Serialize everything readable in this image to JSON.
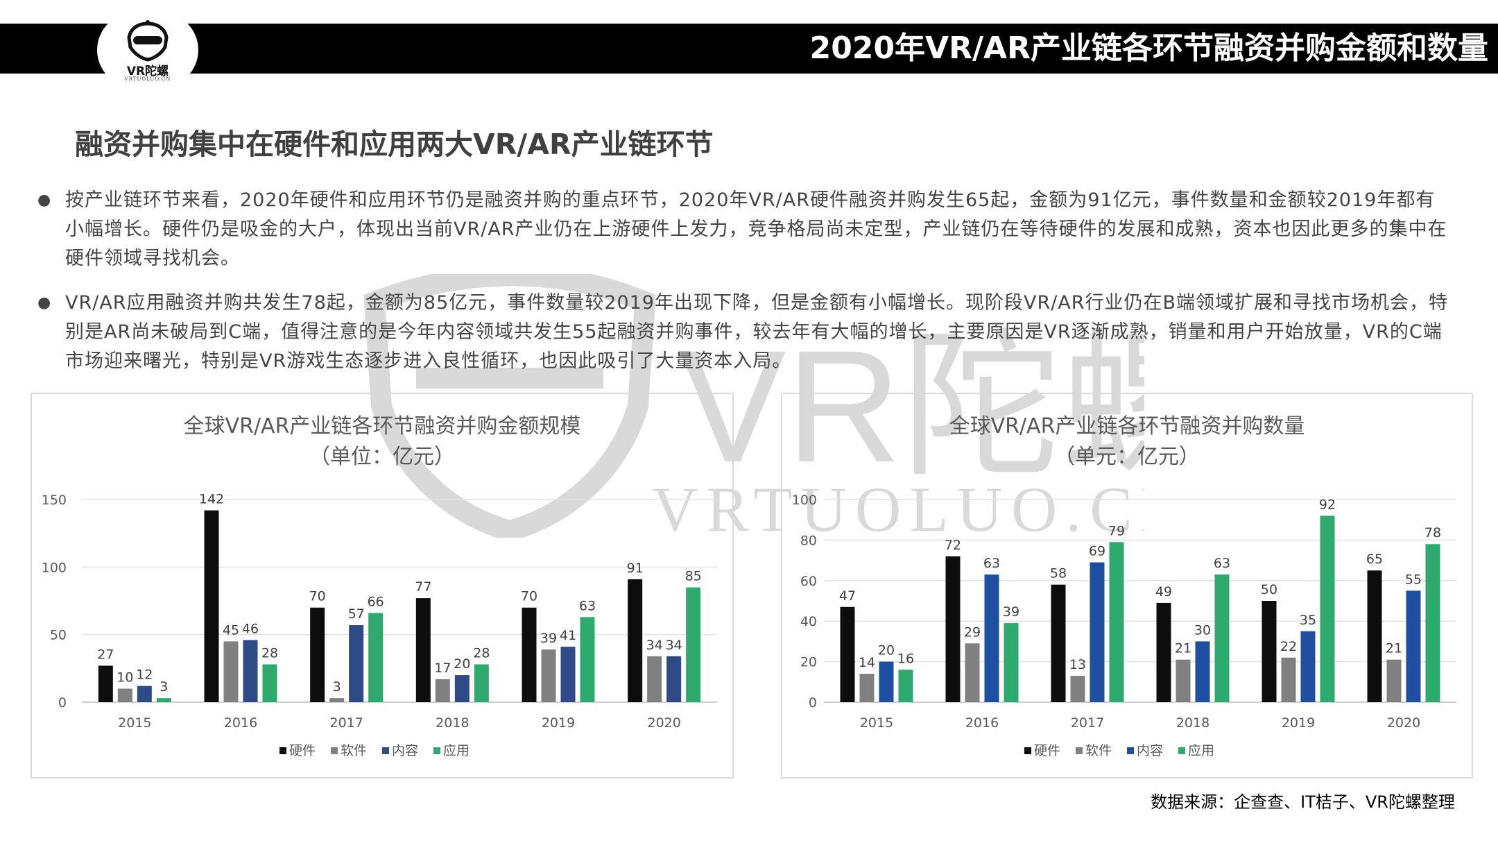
{
  "header": {
    "title": "2020年VR/AR产业链各环节融资并购金额和数量",
    "logo_text": "VR陀螺",
    "logo_sub": "VRTUOLUO.CN"
  },
  "subtitle": "融资并购集中在硬件和应用两大VR/AR产业链环节",
  "bullets": [
    "按产业链环节来看，2020年硬件和应用环节仍是融资并购的重点环节，2020年VR/AR硬件融资并购发生65起，金额为91亿元，事件数量和金额较2019年都有小幅增长。硬件仍是吸金的大户，体现出当前VR/AR产业仍在上游硬件上发力，竞争格局尚未定型，产业链仍在等待硬件的发展和成熟，资本也因此更多的集中在硬件领域寻找机会。",
    "VR/AR应用融资并购共发生78起，金额为85亿元，事件数量较2019年出现下降，但是金额有小幅增长。现阶段VR/AR行业仍在B端领域扩展和寻找市场机会，特别是AR尚未破局到C端，值得注意的是今年内容领域共发生55起融资并购事件，较去年有大幅的增长，主要原因是VR逐渐成熟，销量和用户开始放量，VR的C端市场迎来曙光，特别是VR游戏生态逐步进入良性循环，也因此吸引了大量资本入局。"
  ],
  "watermark": {
    "mark": "VR陀螺",
    "url": "VRTUOLUO.CN"
  },
  "colors": {
    "硬件": "#0d0d0d",
    "软件": "#808080",
    "内容": "#2e4a87",
    "应用": "#2eaa6f",
    "内容_right": "#1f4fa0"
  },
  "chart_data": [
    {
      "type": "bar",
      "title": "全球VR/AR产业链各环节融资并购金额规模",
      "subtitle": "（单位：亿元）",
      "categories": [
        "2015",
        "2016",
        "2017",
        "2018",
        "2019",
        "2020"
      ],
      "series": [
        {
          "name": "硬件",
          "values": [
            27,
            142,
            70,
            77,
            70,
            91
          ]
        },
        {
          "name": "软件",
          "values": [
            10,
            45,
            3,
            17,
            39,
            34
          ]
        },
        {
          "name": "内容",
          "values": [
            12,
            46,
            57,
            20,
            41,
            34
          ]
        },
        {
          "name": "应用",
          "values": [
            3,
            28,
            66,
            28,
            63,
            85
          ]
        }
      ],
      "ylim": [
        0,
        150
      ],
      "yticks": [
        0,
        50,
        100,
        150
      ],
      "grid": true,
      "legend": "bottom"
    },
    {
      "type": "bar",
      "title": "全球VR/AR产业链各环节融资并购数量",
      "subtitle": "（单元：亿元）",
      "categories": [
        "2015",
        "2016",
        "2017",
        "2018",
        "2019",
        "2020"
      ],
      "series": [
        {
          "name": "硬件",
          "values": [
            47,
            72,
            58,
            49,
            50,
            65
          ]
        },
        {
          "name": "软件",
          "values": [
            14,
            29,
            13,
            21,
            22,
            21
          ]
        },
        {
          "name": "内容",
          "values": [
            20,
            63,
            69,
            30,
            35,
            55
          ]
        },
        {
          "name": "应用",
          "values": [
            16,
            39,
            79,
            63,
            92,
            78
          ]
        }
      ],
      "ylim": [
        0,
        100
      ],
      "yticks": [
        0,
        20,
        40,
        60,
        80,
        100
      ],
      "grid": true,
      "legend": "bottom"
    }
  ],
  "source": "数据来源：企查查、IT桔子、VR陀螺整理"
}
